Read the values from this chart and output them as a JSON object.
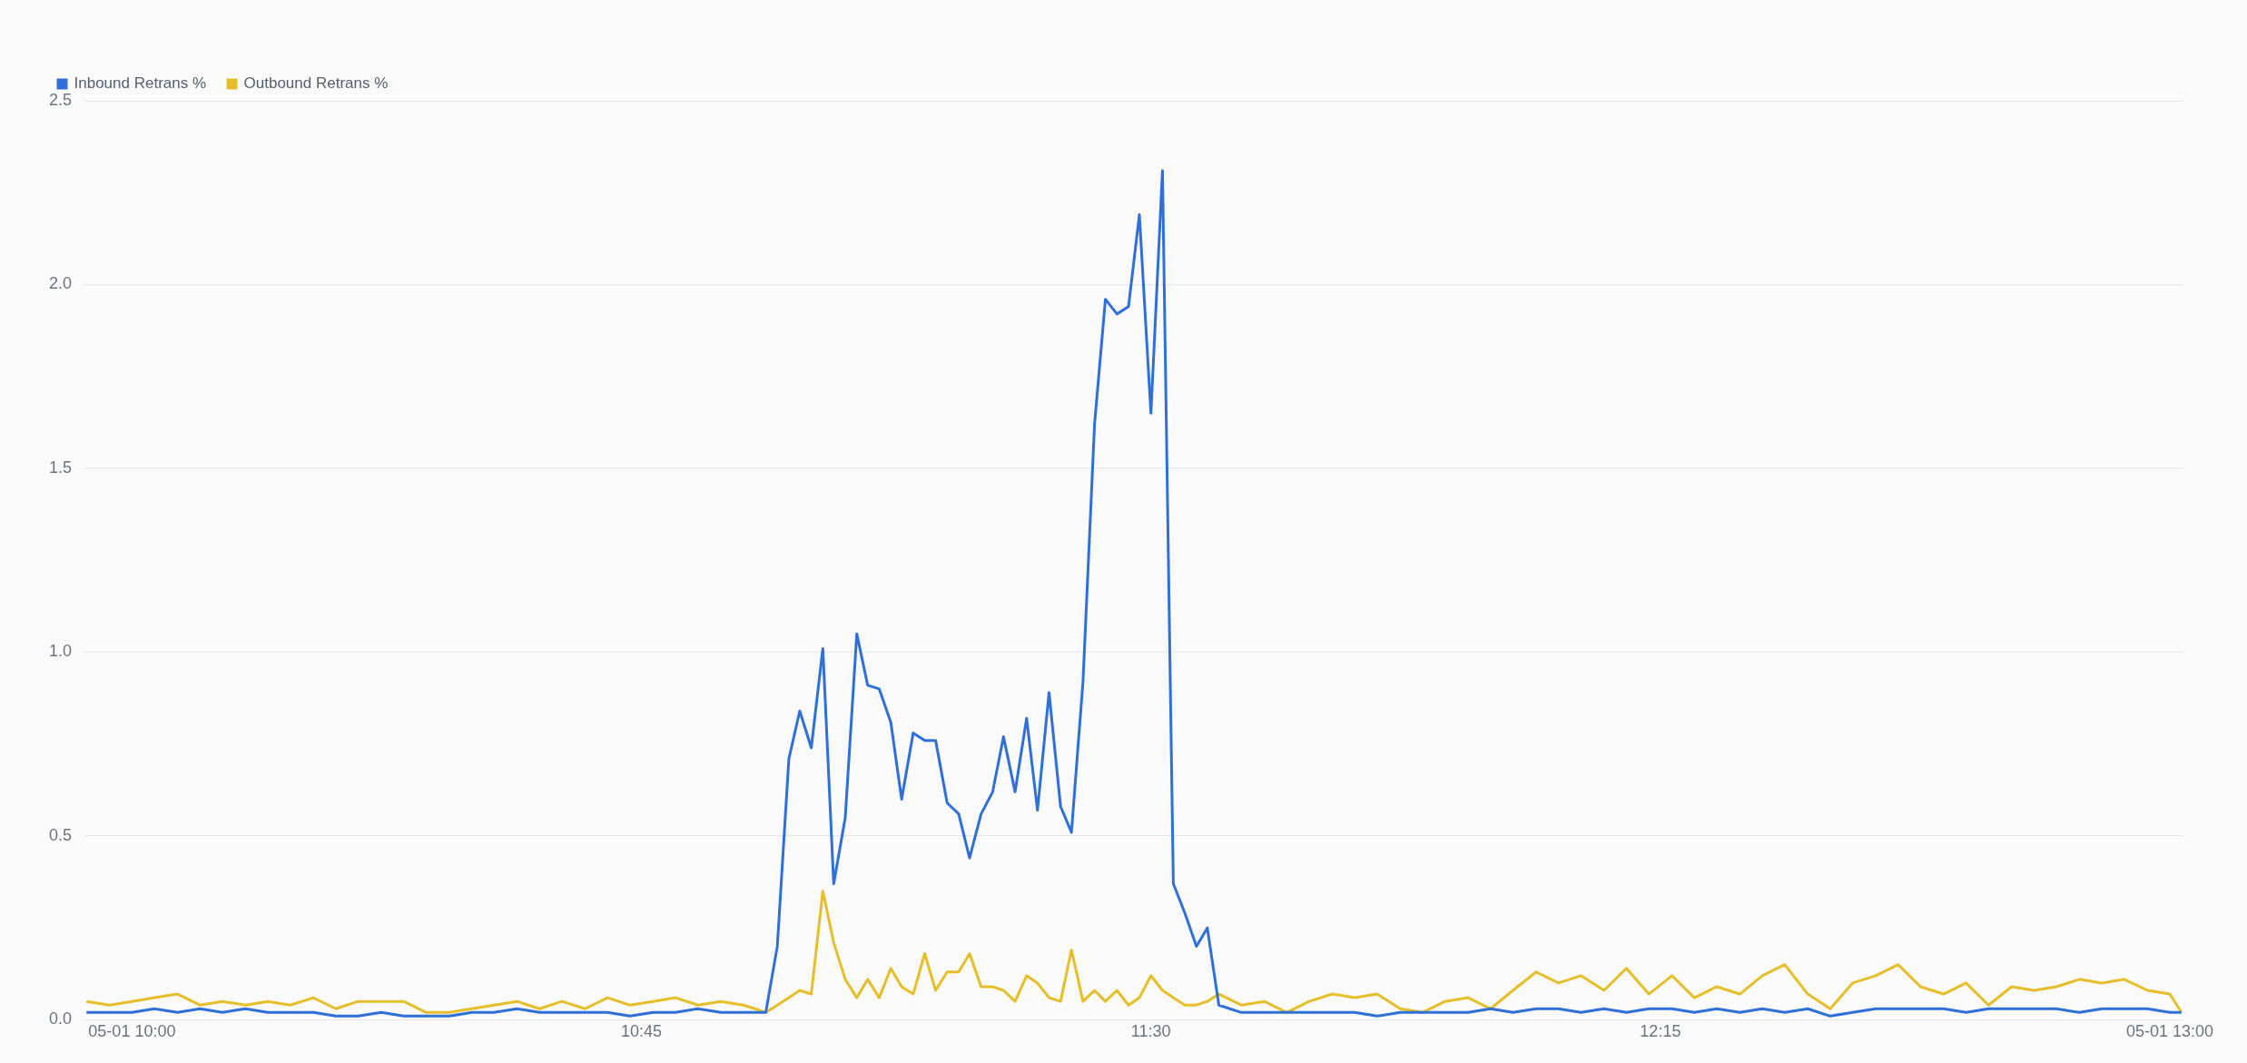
{
  "chart_data": {
    "type": "line",
    "legend": "top left",
    "grid": "y",
    "marker": "none",
    "line_style": "solid",
    "xlim": [
      9.93,
      13.02
    ],
    "xticks": [
      {
        "value": 10,
        "label": "05-01 10:00"
      },
      {
        "value": 10.75,
        "label": "10:45"
      },
      {
        "value": 11.5,
        "label": "11:30"
      },
      {
        "value": 12.25,
        "label": "12:15"
      },
      {
        "value": 13,
        "label": "05-01 13:00"
      }
    ],
    "ylim": [
      0,
      2.5
    ],
    "yticks": [
      {
        "value": 0,
        "label": "0.0"
      },
      {
        "value": 0.5,
        "label": "0.5"
      },
      {
        "value": 1,
        "label": "1.0"
      },
      {
        "value": 1.5,
        "label": "1.5"
      },
      {
        "value": 2,
        "label": "2.0"
      },
      {
        "value": 2.5,
        "label": "2.5"
      }
    ],
    "x": [
      9.933,
      9.967,
      10,
      10.033,
      10.067,
      10.1,
      10.133,
      10.167,
      10.2,
      10.233,
      10.267,
      10.3,
      10.333,
      10.367,
      10.4,
      10.433,
      10.467,
      10.5,
      10.533,
      10.567,
      10.6,
      10.633,
      10.667,
      10.7,
      10.733,
      10.767,
      10.8,
      10.833,
      10.867,
      10.9,
      10.917,
      10.933,
      10.95,
      10.967,
      10.983,
      11,
      11.017,
      11.033,
      11.05,
      11.067,
      11.083,
      11.1,
      11.117,
      11.133,
      11.15,
      11.167,
      11.183,
      11.2,
      11.217,
      11.233,
      11.25,
      11.267,
      11.283,
      11.3,
      11.317,
      11.333,
      11.35,
      11.367,
      11.383,
      11.4,
      11.417,
      11.433,
      11.45,
      11.467,
      11.483,
      11.5,
      11.517,
      11.533,
      11.55,
      11.567,
      11.583,
      11.6,
      11.633,
      11.667,
      11.7,
      11.733,
      11.767,
      11.8,
      11.833,
      11.867,
      11.9,
      11.933,
      11.967,
      12,
      12.033,
      12.067,
      12.1,
      12.133,
      12.167,
      12.2,
      12.233,
      12.267,
      12.3,
      12.333,
      12.367,
      12.4,
      12.433,
      12.467,
      12.5,
      12.533,
      12.567,
      12.6,
      12.633,
      12.667,
      12.7,
      12.733,
      12.767,
      12.8,
      12.833,
      12.867,
      12.9,
      12.933,
      12.967,
      13,
      13.017
    ],
    "series": [
      {
        "name": "Inbound Retrans %",
        "color": "#2f6fd8",
        "values": [
          0.02,
          0.02,
          0.02,
          0.03,
          0.02,
          0.03,
          0.02,
          0.03,
          0.02,
          0.02,
          0.02,
          0.01,
          0.01,
          0.02,
          0.01,
          0.01,
          0.01,
          0.02,
          0.02,
          0.03,
          0.02,
          0.02,
          0.02,
          0.02,
          0.01,
          0.02,
          0.02,
          0.03,
          0.02,
          0.02,
          0.02,
          0.02,
          0.2,
          0.71,
          0.84,
          0.74,
          1.01,
          0.37,
          0.55,
          1.05,
          0.91,
          0.9,
          0.81,
          0.6,
          0.78,
          0.76,
          0.76,
          0.59,
          0.56,
          0.44,
          0.56,
          0.62,
          0.77,
          0.62,
          0.82,
          0.57,
          0.89,
          0.58,
          0.51,
          0.92,
          1.62,
          1.96,
          1.92,
          1.94,
          2.19,
          1.65,
          2.31,
          0.37,
          0.29,
          0.2,
          0.25,
          0.04,
          0.02,
          0.02,
          0.02,
          0.02,
          0.02,
          0.02,
          0.01,
          0.02,
          0.02,
          0.02,
          0.02,
          0.03,
          0.02,
          0.03,
          0.03,
          0.02,
          0.03,
          0.02,
          0.03,
          0.03,
          0.02,
          0.03,
          0.02,
          0.03,
          0.02,
          0.03,
          0.01,
          0.02,
          0.03,
          0.03,
          0.03,
          0.03,
          0.02,
          0.03,
          0.03,
          0.03,
          0.03,
          0.02,
          0.03,
          0.03,
          0.03,
          0.02,
          0.02
        ]
      },
      {
        "name": "Outbound Retrans %",
        "color": "#e6be2a",
        "values": [
          0.05,
          0.04,
          0.05,
          0.06,
          0.07,
          0.04,
          0.05,
          0.04,
          0.05,
          0.04,
          0.06,
          0.03,
          0.05,
          0.05,
          0.05,
          0.02,
          0.02,
          0.03,
          0.04,
          0.05,
          0.03,
          0.05,
          0.03,
          0.06,
          0.04,
          0.05,
          0.06,
          0.04,
          0.05,
          0.04,
          0.03,
          0.02,
          0.04,
          0.06,
          0.08,
          0.07,
          0.35,
          0.21,
          0.11,
          0.06,
          0.11,
          0.06,
          0.14,
          0.09,
          0.07,
          0.18,
          0.08,
          0.13,
          0.13,
          0.18,
          0.09,
          0.09,
          0.08,
          0.05,
          0.12,
          0.1,
          0.06,
          0.05,
          0.19,
          0.05,
          0.08,
          0.05,
          0.08,
          0.04,
          0.06,
          0.12,
          0.08,
          0.06,
          0.04,
          0.04,
          0.05,
          0.07,
          0.04,
          0.05,
          0.02,
          0.05,
          0.07,
          0.06,
          0.07,
          0.03,
          0.02,
          0.05,
          0.06,
          0.03,
          0.08,
          0.13,
          0.1,
          0.12,
          0.08,
          0.14,
          0.07,
          0.12,
          0.06,
          0.09,
          0.07,
          0.12,
          0.15,
          0.07,
          0.03,
          0.1,
          0.12,
          0.15,
          0.09,
          0.07,
          0.1,
          0.04,
          0.09,
          0.08,
          0.09,
          0.11,
          0.1,
          0.11,
          0.08,
          0.07,
          0.02
        ]
      }
    ]
  }
}
